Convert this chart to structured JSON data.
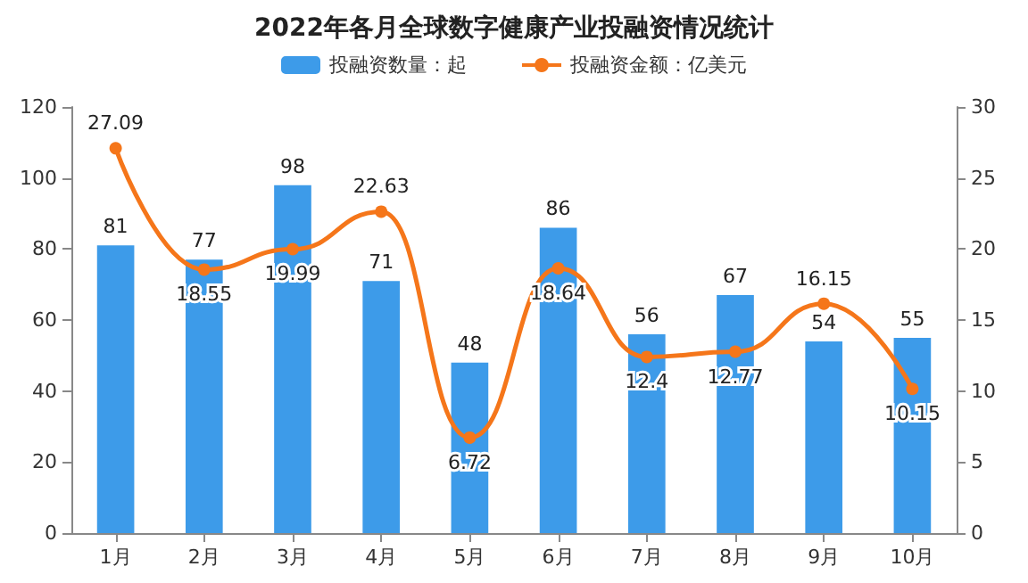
{
  "chart_data": {
    "type": "bar",
    "title": "2022年各月全球数字健康产业投融资情况统计",
    "categories": [
      "1月",
      "2月",
      "3月",
      "4月",
      "5月",
      "6月",
      "7月",
      "8月",
      "9月",
      "10月"
    ],
    "series": [
      {
        "name": "投融资数量：起",
        "color": "#3d9be9",
        "values": [
          81,
          77,
          98,
          71,
          48,
          86,
          56,
          67,
          54,
          55
        ]
      },
      {
        "name": "投融资金额：亿美元",
        "type": "line",
        "axis": "y2",
        "color": "#f5761a",
        "values": [
          27.09,
          18.55,
          19.99,
          22.63,
          6.72,
          18.64,
          12.4,
          12.77,
          16.15,
          10.15
        ]
      }
    ],
    "ylim": [
      0,
      120
    ],
    "yticks": [
      0,
      20,
      40,
      60,
      80,
      100,
      120
    ],
    "y2lim": [
      0,
      30
    ],
    "y2ticks": [
      0,
      5,
      10,
      15,
      20,
      25,
      30
    ],
    "data_labels": true,
    "legend": "top",
    "marker": "circle",
    "grid": false
  }
}
